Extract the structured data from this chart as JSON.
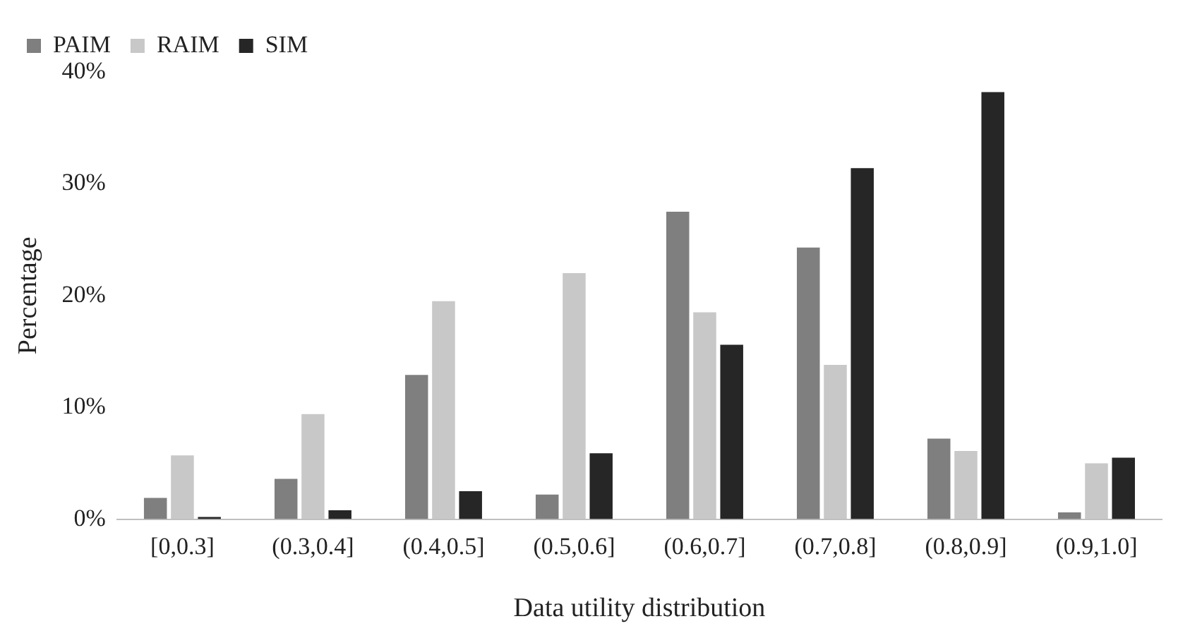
{
  "chart_data": {
    "type": "bar",
    "xlabel": "Data utility distribution",
    "ylabel": "Percentage",
    "categories": [
      "[0,0.3]",
      "(0.3,0.4]",
      "(0.4,0.5]",
      "(0.5,0.6]",
      "(0.6,0.7]",
      "(0.7,0.8]",
      "(0.8,0.9]",
      "(0.9,1.0]"
    ],
    "series": [
      {
        "name": "PAIM",
        "color": "#7f7f7f",
        "values": [
          1.9,
          3.6,
          12.9,
          2.2,
          27.5,
          24.3,
          7.2,
          0.6
        ]
      },
      {
        "name": "RAIM",
        "color": "#c8c8c8",
        "values": [
          5.7,
          9.4,
          19.5,
          22.0,
          18.5,
          13.8,
          6.1,
          5.0
        ]
      },
      {
        "name": "SIM",
        "color": "#262626",
        "values": [
          0.2,
          0.8,
          2.5,
          5.9,
          15.6,
          31.4,
          38.2,
          5.5
        ]
      }
    ],
    "ylim": [
      0,
      40
    ],
    "yticks": [
      {
        "value": 0,
        "label": "0%"
      },
      {
        "value": 10,
        "label": "10%"
      },
      {
        "value": 20,
        "label": "20%"
      },
      {
        "value": 30,
        "label": "30%"
      },
      {
        "value": 40,
        "label": "40%"
      }
    ],
    "grid": false,
    "legend": "top left"
  }
}
